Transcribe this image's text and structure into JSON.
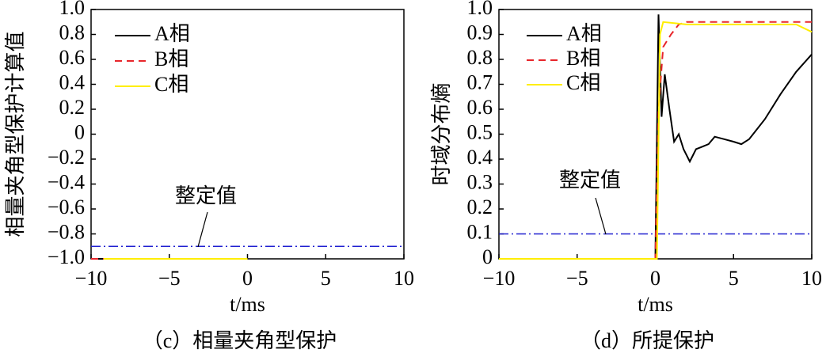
{
  "chart_data": [
    {
      "type": "line",
      "caption": "（c）相量夹角型保护",
      "xlabel": "t/ms",
      "ylabel": "相量夹角型保护计算值",
      "xlim": [
        -10,
        10
      ],
      "xticks": [
        {
          "value": -10,
          "label": "−10"
        },
        {
          "value": -5,
          "label": "−5"
        },
        0,
        5,
        10
      ],
      "ylim": [
        -1,
        1
      ],
      "yticks": [
        {
          "value": 1,
          "label": "1.0"
        },
        0.8,
        0.6,
        0.4,
        0.2,
        0,
        {
          "value": -0.2,
          "label": "−0.2"
        },
        {
          "value": -0.4,
          "label": "−0.4"
        },
        {
          "value": -0.6,
          "label": "−0.6"
        },
        {
          "value": -0.8,
          "label": "−0.8"
        },
        {
          "value": -1,
          "label": "−1.0"
        }
      ],
      "threshold": {
        "value": -0.9,
        "color": "#1f1fd0"
      },
      "annotation": "整定值",
      "series": [
        {
          "name": "A相",
          "color": "#000000",
          "dash": "solid",
          "x": [
            -10,
            0
          ],
          "values": [
            -1,
            -1
          ]
        },
        {
          "name": "B相",
          "color": "#e8262b",
          "dash": "dashed",
          "x": [
            -10,
            0
          ],
          "values": [
            -1,
            -1
          ]
        },
        {
          "name": "C相",
          "color": "#ffee00",
          "dash": "solid",
          "x": [
            -9.2,
            0
          ],
          "values": [
            -1,
            -1
          ]
        }
      ]
    },
    {
      "type": "line",
      "caption": "（d）所提保护",
      "xlabel": "t/ms",
      "ylabel": "时域分布熵",
      "xlim": [
        -10,
        10
      ],
      "xticks": [
        {
          "value": -10,
          "label": "−10"
        },
        {
          "value": -5,
          "label": "−5"
        },
        0,
        5,
        10
      ],
      "ylim": [
        0,
        1
      ],
      "yticks": [
        0,
        0.1,
        0.2,
        0.3,
        0.4,
        0.5,
        0.6,
        0.7,
        0.8,
        0.9,
        {
          "value": 1,
          "label": "1.0"
        }
      ],
      "threshold": {
        "value": 0.1,
        "color": "#1f1fd0"
      },
      "annotation": "整定值",
      "series": [
        {
          "name": "A相",
          "color": "#000000",
          "dash": "solid",
          "x": [
            -10,
            0,
            0.2,
            0.4,
            0.6,
            0.9,
            1.2,
            1.5,
            1.8,
            2.2,
            2.6,
            3.0,
            3.4,
            3.8,
            4.4,
            5.0,
            5.5,
            6,
            7,
            8,
            9,
            10
          ],
          "values": [
            0,
            0,
            0.98,
            0.57,
            0.74,
            0.6,
            0.47,
            0.5,
            0.44,
            0.39,
            0.44,
            0.45,
            0.46,
            0.49,
            0.48,
            0.47,
            0.46,
            0.48,
            0.56,
            0.66,
            0.75,
            0.82
          ]
        },
        {
          "name": "B相",
          "color": "#e8262b",
          "dash": "dashed",
          "x": [
            -10,
            0,
            0.2,
            0.5,
            1,
            1.5,
            2,
            10
          ],
          "values": [
            0,
            0,
            0.6,
            0.85,
            0.9,
            0.94,
            0.95,
            0.95
          ]
        },
        {
          "name": "C相",
          "color": "#ffee00",
          "dash": "solid",
          "x": [
            -10,
            0.1,
            0.3,
            0.5,
            2,
            5,
            9,
            10
          ],
          "values": [
            0,
            0,
            0.9,
            0.95,
            0.94,
            0.94,
            0.94,
            0.91
          ]
        }
      ]
    }
  ]
}
